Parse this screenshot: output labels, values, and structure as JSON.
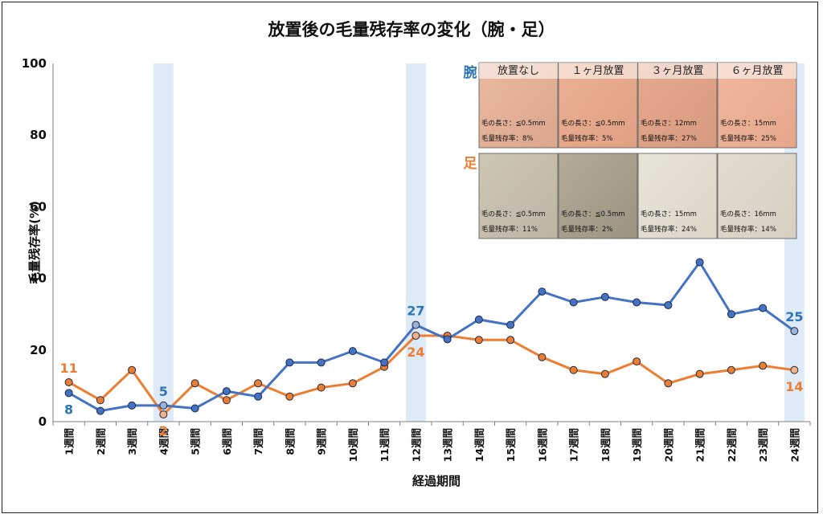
{
  "colors": {
    "arm": "#4472C4",
    "arm_label": "#2E75B6",
    "leg": "#ED7D31",
    "highlight": "#DEEBF7",
    "axis": "#7F7F7F"
  },
  "chart_data": {
    "type": "line",
    "title": "放置後の毛量残存率の変化（腕・足）",
    "xlabel": "経過期間",
    "ylabel": "毛量残存率(%)",
    "ylim": [
      0,
      100
    ],
    "yticks": [
      "0",
      "20",
      "40",
      "60",
      "80",
      "100"
    ],
    "categories": [
      "1週間",
      "2週間",
      "3週間",
      "4週間",
      "5週間",
      "6週間",
      "7週間",
      "8週間",
      "9週間",
      "10週間",
      "11週間",
      "12週間",
      "13週間",
      "14週間",
      "15週間",
      "16週間",
      "17週間",
      "18週間",
      "19週間",
      "20週間",
      "21週間",
      "22週間",
      "23週間",
      "24週間"
    ],
    "highlighted_categories": [
      4,
      12,
      24
    ],
    "series": [
      {
        "key": "arm",
        "values": [
          8,
          3,
          4.5,
          4.5,
          3.7,
          8.5,
          7,
          16.5,
          16.5,
          19.7,
          16.5,
          27,
          23,
          28.5,
          27,
          36.3,
          33.3,
          34.8,
          33.3,
          32.5,
          44.5,
          30,
          31.7,
          25.3
        ]
      },
      {
        "key": "leg",
        "values": [
          11,
          6,
          14.4,
          2,
          10.7,
          6,
          10.7,
          7,
          9.5,
          10.7,
          15.3,
          24,
          24,
          22.8,
          22.8,
          18,
          14.4,
          13.3,
          16.8,
          10.7,
          13.3,
          14.4,
          15.6,
          14.4
        ]
      }
    ],
    "data_labels": [
      {
        "series": "arm",
        "index": 0,
        "text": "8",
        "pos": "below"
      },
      {
        "series": "leg",
        "index": 0,
        "text": "11",
        "pos": "above"
      },
      {
        "series": "arm",
        "index": 3,
        "text": "5",
        "pos": "above"
      },
      {
        "series": "leg",
        "index": 3,
        "text": "2",
        "pos": "below"
      },
      {
        "series": "arm",
        "index": 11,
        "text": "27",
        "pos": "above"
      },
      {
        "series": "leg",
        "index": 11,
        "text": "24",
        "pos": "below"
      },
      {
        "series": "arm",
        "index": 23,
        "text": "25",
        "pos": "above"
      },
      {
        "series": "leg",
        "index": 23,
        "text": "14",
        "pos": "below"
      }
    ]
  },
  "photo_panel": {
    "column_titles": [
      "放置なし",
      "１ヶ月放置",
      "３ヶ月放置",
      "６ヶ月放置"
    ],
    "rows": [
      {
        "label": "腕",
        "cells": [
          {
            "length": "毛の長さ：≦0.5mm",
            "rate": "毛量残存率：8%"
          },
          {
            "length": "毛の長さ：≦0.5mm",
            "rate": "毛量残存率：5%"
          },
          {
            "length": "毛の長さ：12mm",
            "rate": "毛量残存率：27%"
          },
          {
            "length": "毛の長さ：15mm",
            "rate": "毛量残存率：25%"
          }
        ]
      },
      {
        "label": "足",
        "cells": [
          {
            "length": "毛の長さ：≦0.5mm",
            "rate": "毛量残存率：11%"
          },
          {
            "length": "毛の長さ：≦0.5mm",
            "rate": "毛量残存率：2%"
          },
          {
            "length": "毛の長さ：15mm",
            "rate": "毛量残存率：24%"
          },
          {
            "length": "毛の長さ：16mm",
            "rate": "毛量残存率：14%"
          }
        ]
      }
    ]
  }
}
